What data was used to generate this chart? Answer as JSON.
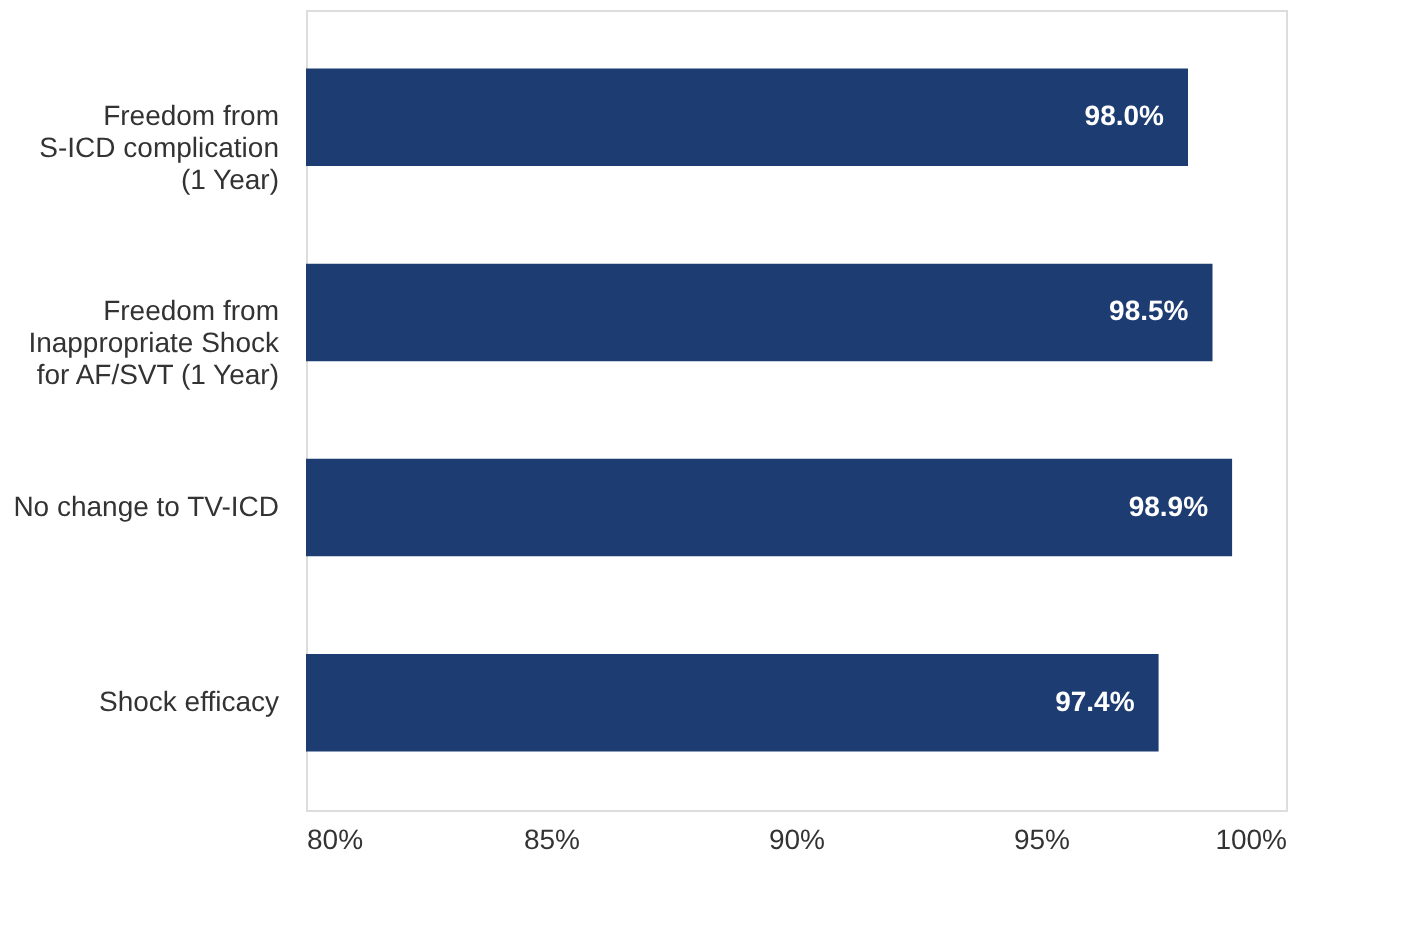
{
  "chart_data": {
    "type": "bar",
    "orientation": "horizontal",
    "categories": [
      "Freedom from\nS-ICD complication\n(1 Year)",
      "Freedom from\nInappropriate Shock\nfor AF/SVT (1 Year)",
      "No change to TV-ICD",
      "Shock efficacy"
    ],
    "values": [
      98.0,
      98.5,
      98.9,
      97.4
    ],
    "value_labels": [
      "98.0%",
      "98.5%",
      "98.9%",
      "97.4%"
    ],
    "color": "#1d3d72",
    "xlim": [
      80,
      100
    ],
    "xticks": [
      {
        "value": 80,
        "label": "80%"
      },
      {
        "value": 85,
        "label": "85%"
      },
      {
        "value": 90,
        "label": "90%"
      },
      {
        "value": 95,
        "label": "95%"
      },
      {
        "value": 100,
        "label": "100%"
      }
    ],
    "grid": false
  }
}
